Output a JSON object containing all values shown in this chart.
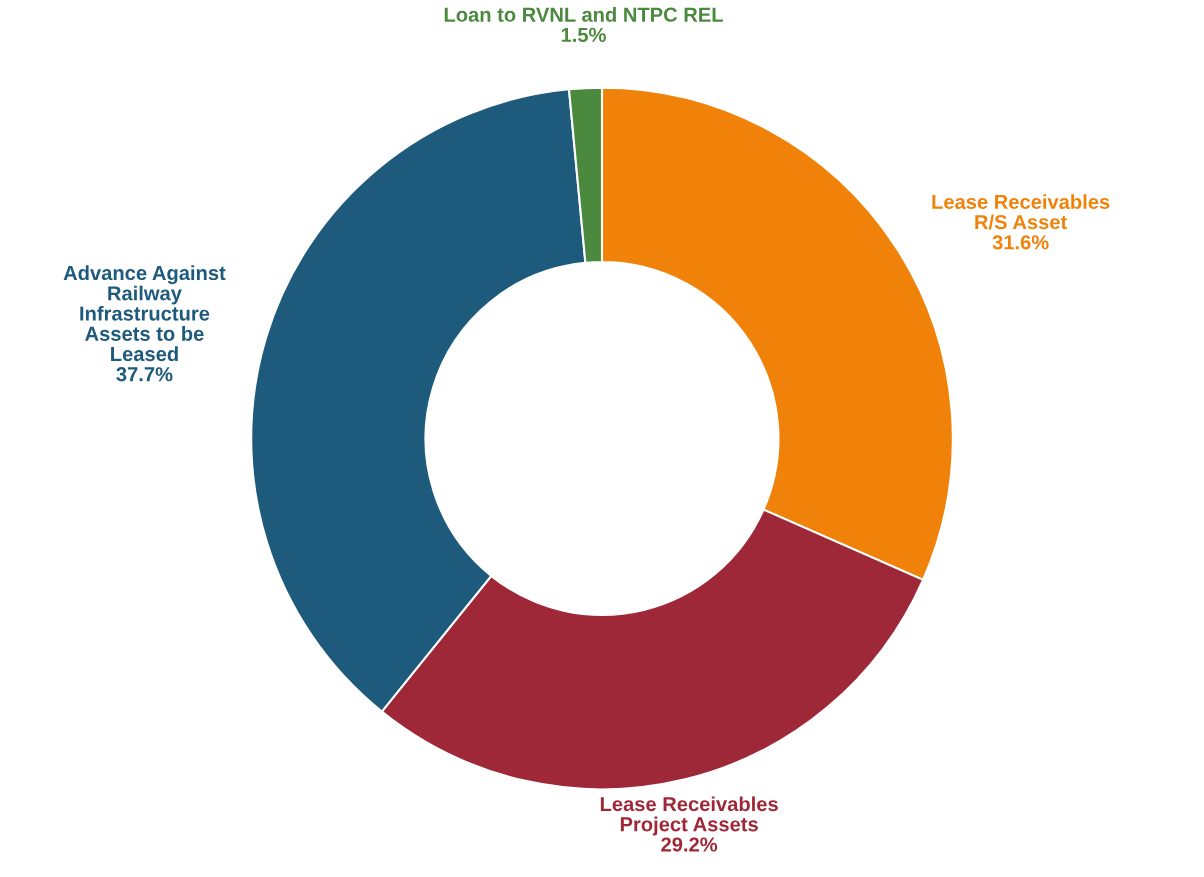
{
  "chart_data": {
    "type": "donut",
    "categories": [
      "Lease Receivables\nR/S Asset",
      "Lease Receivables\nProject Assets",
      "Advance Against\nRailway\nInfrastructure\nAssets to be\nLeased",
      "Loan to RVNL and NTPC REL"
    ],
    "values": [
      31.6,
      29.2,
      37.7,
      1.5
    ],
    "value_labels": [
      "31.6%",
      "29.2%",
      "37.7%",
      "1.5%"
    ],
    "colors": [
      "#f0820a",
      "#9e2837",
      "#1e5a7c",
      "#4b8a3e"
    ],
    "legend": false
  }
}
